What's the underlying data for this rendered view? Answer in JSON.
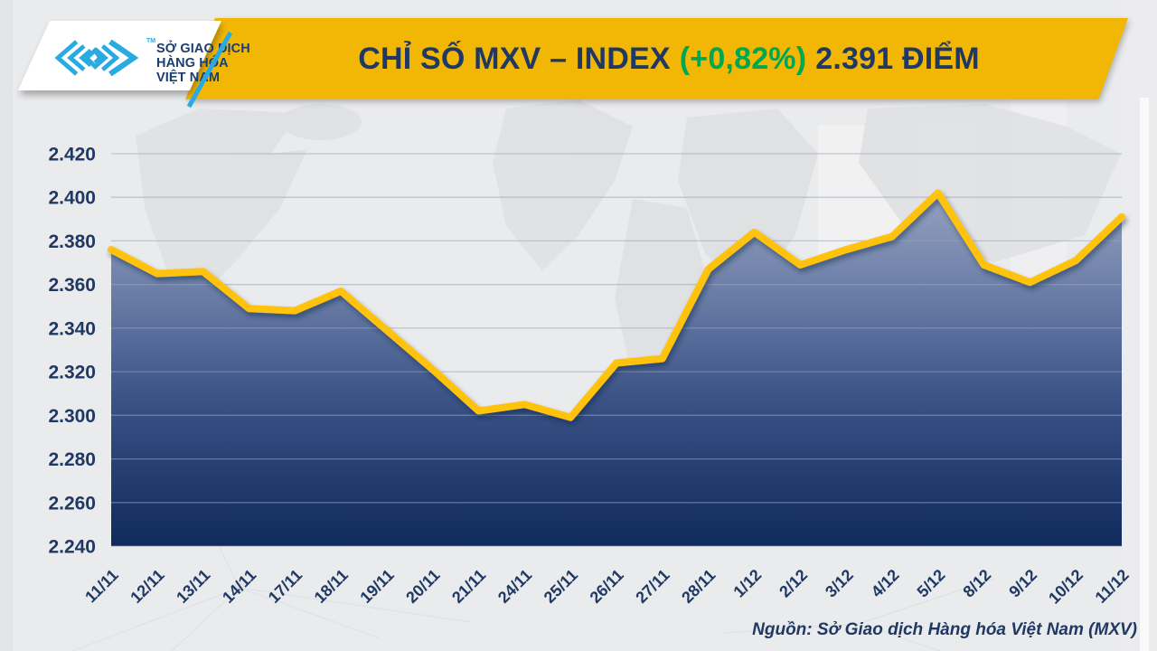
{
  "header": {
    "title": {
      "left": "CHỈ SỐ MXV – INDEX",
      "change": "(+0,82%)",
      "right": "2.391 ĐIỂM"
    }
  },
  "logo": {
    "tm": "TM",
    "line1": "SỞ GIAO DỊCH",
    "line2": "HÀNG HÓA",
    "line3": "VIỆT NAM"
  },
  "footer": {
    "source": "Nguồn: Sở Giao dịch Hàng hóa Việt Nam (MXV)"
  },
  "colors": {
    "banner_yellow": "#F2B705",
    "line_yellow": "#FFC20E",
    "navy_text": "#1F3864",
    "positive_green": "#00A650",
    "logo_blue": "#29ABE2",
    "background_gray": "#EAEBED",
    "area_top": "#97A3C0",
    "area_bottom": "#0F2A5C"
  },
  "chart_data": {
    "type": "area",
    "title": "CHỈ SỐ MXV – INDEX (+0,82%) 2.391 ĐIỂM",
    "change_percent": "+0,82%",
    "latest_value_label": "2.391",
    "x": [
      "11/11",
      "12/11",
      "13/11",
      "14/11",
      "17/11",
      "18/11",
      "19/11",
      "20/11",
      "21/11",
      "24/11",
      "25/11",
      "26/11",
      "27/11",
      "28/11",
      "1/12",
      "2/12",
      "3/12",
      "4/12",
      "5/12",
      "8/12",
      "9/12",
      "10/12",
      "11/12"
    ],
    "values": [
      2.376,
      2.365,
      2.366,
      2.349,
      2.348,
      2.357,
      2.339,
      2.321,
      2.302,
      2.305,
      2.299,
      2.324,
      2.326,
      2.367,
      2.384,
      2.369,
      2.376,
      2.382,
      2.402,
      2.369,
      2.361,
      2.371,
      2.391
    ],
    "series_name": "MXV-Index",
    "xlabel": "",
    "ylabel": "",
    "ylim": [
      2.24,
      2.42
    ],
    "ytick_step": 0.02,
    "ytick_labels": [
      "2.420",
      "2.400",
      "2.380",
      "2.360",
      "2.340",
      "2.320",
      "2.300",
      "2.280",
      "2.260",
      "2.240"
    ],
    "grid": true,
    "legend": false,
    "grid_color": "#9AA3BC",
    "label_color": "#1F3864",
    "line_color": "#FFC20E",
    "area_gradient": [
      {
        "offset": "0%",
        "color": "#97A3C0"
      },
      {
        "offset": "30%",
        "color": "#687CA6"
      },
      {
        "offset": "60%",
        "color": "#3A5186"
      },
      {
        "offset": "100%",
        "color": "#0F2A5C"
      }
    ]
  }
}
